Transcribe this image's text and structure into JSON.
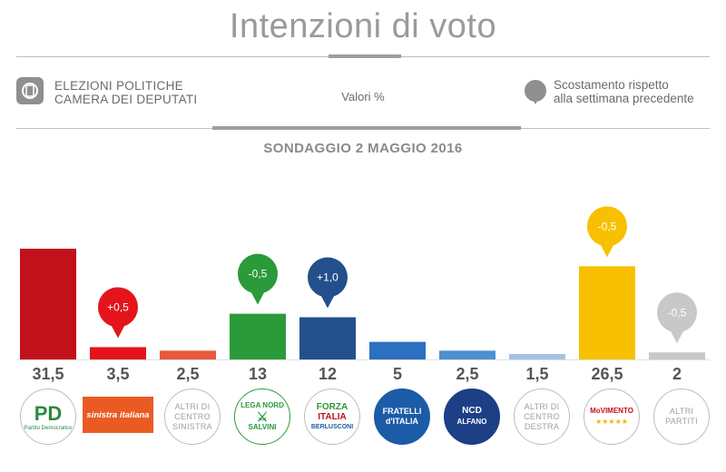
{
  "header": {
    "title": "Intenzioni di voto",
    "left_line1": "ELEZIONI POLITICHE",
    "left_line2": "CAMERA DEI DEPUTATI",
    "center": "Valori %",
    "right_line1": "Scostamento rispetto",
    "right_line2": "alla settimana precedente"
  },
  "chart_data": {
    "type": "bar",
    "title": "SONDAGGIO 2 MAGGIO 2016",
    "value_labels": [
      "31,5",
      "3,5",
      "2,5",
      "13",
      "12",
      "5",
      "2,5",
      "1,5",
      "26,5",
      "2"
    ],
    "values": [
      31.5,
      3.5,
      2.5,
      13,
      12,
      5,
      2.5,
      1.5,
      26.5,
      2
    ],
    "changes": [
      "",
      "+0,5",
      "",
      "-0,5",
      "+1,0",
      "",
      "",
      "",
      "-0,5",
      "-0,5"
    ],
    "bar_colors": [
      "#c2111b",
      "#e3151b",
      "#e8583c",
      "#2a9a3b",
      "#234f8c",
      "#2d6fc0",
      "#4d8fd0",
      "#a8c0e6",
      "#f8c000",
      "#c8c8c8"
    ],
    "pin_colors": [
      "",
      "#e3151b",
      "",
      "#2a9a3b",
      "#234f8c",
      "",
      "",
      "",
      "#f8c000",
      "#c8c8c8"
    ],
    "ylim": [
      0,
      32
    ]
  },
  "logos": {
    "pd": "PD",
    "pd_sub": "Partito Democratico",
    "si": "sinistra italiana",
    "altri_cs": [
      "ALTRI DI",
      "CENTRO",
      "SINISTRA"
    ],
    "lega": [
      "LEGA NORD",
      "SALVINI"
    ],
    "fi": [
      "FORZA",
      "ITALIA",
      "BERLUSCONI"
    ],
    "fdi": [
      "FRATELLI",
      "d'ITALIA"
    ],
    "ncd": [
      "NCD",
      "ALFANO"
    ],
    "altri_cd": [
      "ALTRI DI",
      "CENTRO",
      "DESTRA"
    ],
    "m5s": [
      "MoVIMENTO",
      "★★★★★"
    ],
    "altri": [
      "ALTRI",
      "PARTITI"
    ]
  }
}
